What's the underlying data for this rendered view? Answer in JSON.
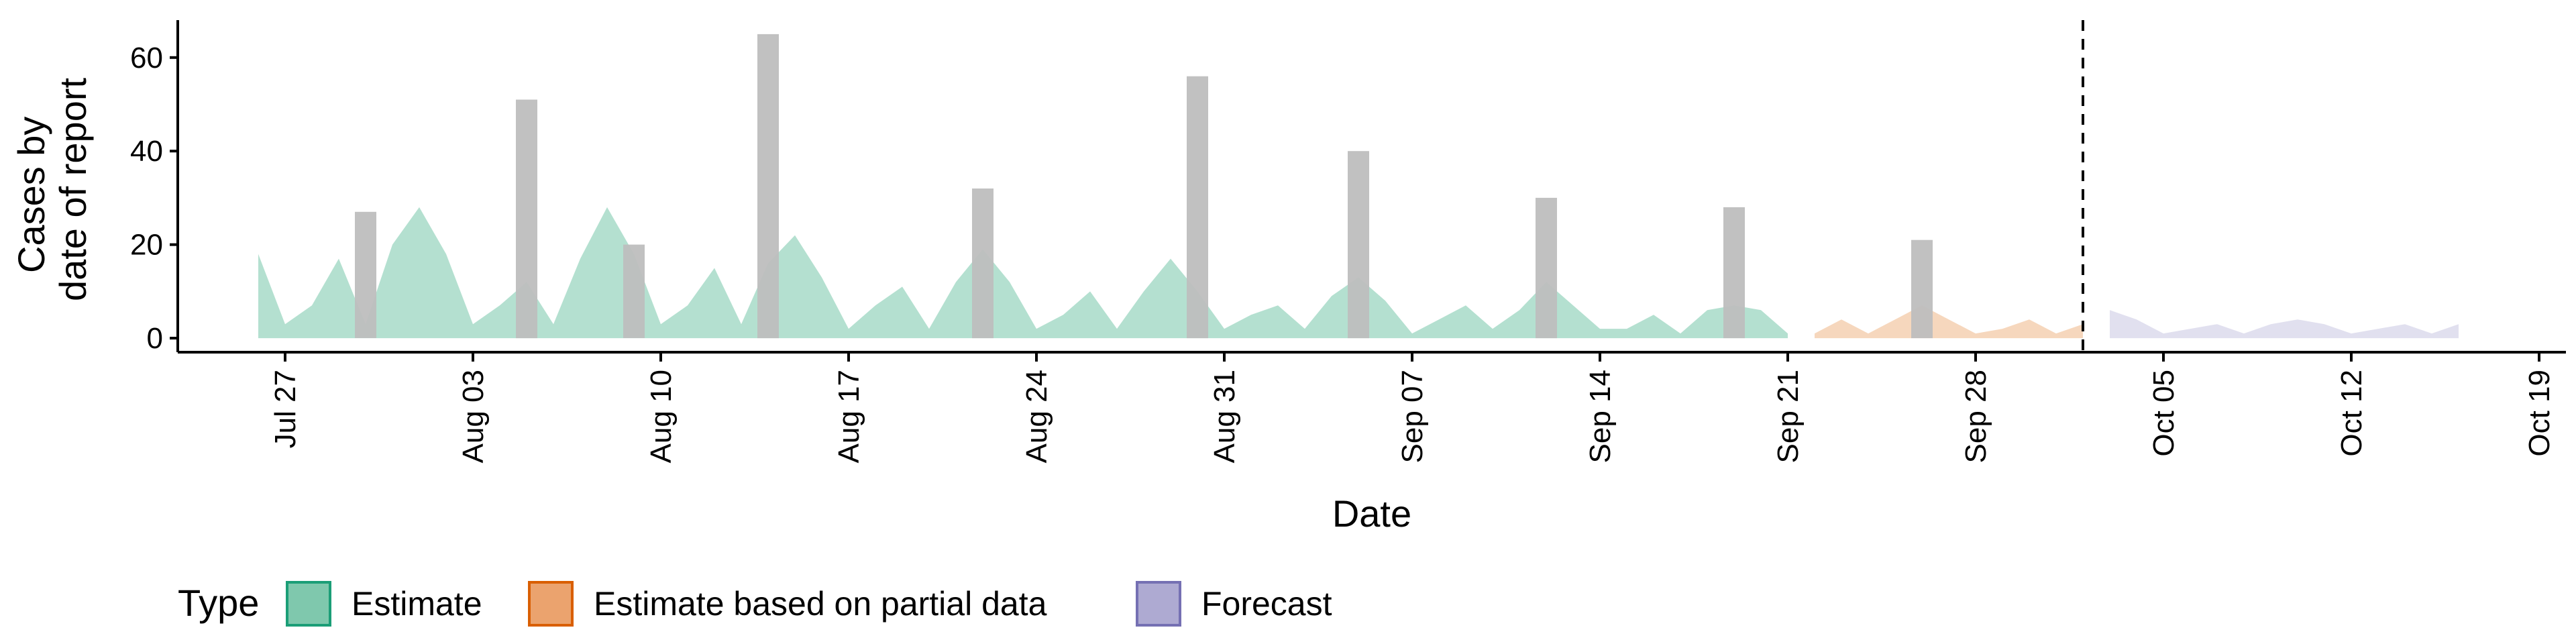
{
  "chart_data": {
    "type": "area",
    "title": "",
    "xlabel": "Date",
    "ylabel": [
      "Cases by",
      "date of report"
    ],
    "xlim": [
      "2020-07-23",
      "2020-10-20"
    ],
    "ylim": [
      -3,
      68
    ],
    "y_ticks": [
      0,
      20,
      40,
      60
    ],
    "x_ticks": [
      {
        "date": "2020-07-27",
        "label": "Jul 27"
      },
      {
        "date": "2020-08-03",
        "label": "Aug 03"
      },
      {
        "date": "2020-08-10",
        "label": "Aug 10"
      },
      {
        "date": "2020-08-17",
        "label": "Aug 17"
      },
      {
        "date": "2020-08-24",
        "label": "Aug 24"
      },
      {
        "date": "2020-08-31",
        "label": "Aug 31"
      },
      {
        "date": "2020-09-07",
        "label": "Sep 07"
      },
      {
        "date": "2020-09-14",
        "label": "Sep 14"
      },
      {
        "date": "2020-09-21",
        "label": "Sep 21"
      },
      {
        "date": "2020-09-28",
        "label": "Sep 28"
      },
      {
        "date": "2020-10-05",
        "label": "Oct 05"
      },
      {
        "date": "2020-10-12",
        "label": "Oct 12"
      },
      {
        "date": "2020-10-19",
        "label": "Oct 19"
      }
    ],
    "grid": false,
    "legend_position": "bottom",
    "legend_title": "Type",
    "legend": [
      {
        "label": "Estimate",
        "fill": "#7fc8ad",
        "stroke": "#1b9e77"
      },
      {
        "label": "Estimate based on partial data",
        "fill": "#eba36e",
        "stroke": "#d95f02"
      },
      {
        "label": "Forecast",
        "fill": "#aeaad2",
        "stroke": "#7570b3"
      }
    ],
    "forecast_line_date": "2020-10-02",
    "reported_cases": {
      "color": "#bebebe",
      "x": [
        "2020-07-30",
        "2020-08-05",
        "2020-08-09",
        "2020-08-14",
        "2020-08-22",
        "2020-08-30",
        "2020-09-05",
        "2020-09-12",
        "2020-09-19",
        "2020-09-26"
      ],
      "y": [
        27,
        51,
        20,
        65,
        32,
        56,
        40,
        30,
        28,
        21
      ]
    },
    "series": [
      {
        "name": "Estimate",
        "fill": "#a7dac8",
        "x": [
          "2020-07-26",
          "2020-07-27",
          "2020-07-28",
          "2020-07-29",
          "2020-07-30",
          "2020-07-31",
          "2020-08-01",
          "2020-08-02",
          "2020-08-03",
          "2020-08-04",
          "2020-08-05",
          "2020-08-06",
          "2020-08-07",
          "2020-08-08",
          "2020-08-09",
          "2020-08-10",
          "2020-08-11",
          "2020-08-12",
          "2020-08-13",
          "2020-08-14",
          "2020-08-15",
          "2020-08-16",
          "2020-08-17",
          "2020-08-18",
          "2020-08-19",
          "2020-08-20",
          "2020-08-21",
          "2020-08-22",
          "2020-08-23",
          "2020-08-24",
          "2020-08-25",
          "2020-08-26",
          "2020-08-27",
          "2020-08-28",
          "2020-08-29",
          "2020-08-30",
          "2020-08-31",
          "2020-09-01",
          "2020-09-02",
          "2020-09-03",
          "2020-09-04",
          "2020-09-05",
          "2020-09-06",
          "2020-09-07",
          "2020-09-08",
          "2020-09-09",
          "2020-09-10",
          "2020-09-11",
          "2020-09-12",
          "2020-09-13",
          "2020-09-14",
          "2020-09-15",
          "2020-09-16",
          "2020-09-17",
          "2020-09-18",
          "2020-09-19",
          "2020-09-20",
          "2020-09-21"
        ],
        "y": [
          18,
          3,
          7,
          17,
          3,
          20,
          28,
          18,
          3,
          7,
          12,
          3,
          17,
          28,
          18,
          3,
          7,
          15,
          3,
          16,
          22,
          13,
          2,
          7,
          11,
          2,
          12,
          19,
          12,
          2,
          5,
          10,
          2,
          10,
          17,
          10,
          2,
          5,
          7,
          2,
          9,
          13,
          8,
          1,
          4,
          7,
          2,
          6,
          12,
          7,
          2,
          2,
          5,
          1,
          6,
          7,
          6,
          1
        ]
      },
      {
        "name": "Estimate based on partial data",
        "fill": "#f5d0b2",
        "x": [
          "2020-09-22",
          "2020-09-23",
          "2020-09-24",
          "2020-09-25",
          "2020-09-26",
          "2020-09-27",
          "2020-09-28",
          "2020-09-29",
          "2020-09-30",
          "2020-10-01",
          "2020-10-02"
        ],
        "y": [
          1,
          4,
          1,
          4,
          7,
          4,
          1,
          2,
          4,
          1,
          3
        ]
      },
      {
        "name": "Forecast",
        "fill": "#dcdbec",
        "x": [
          "2020-10-03",
          "2020-10-04",
          "2020-10-05",
          "2020-10-06",
          "2020-10-07",
          "2020-10-08",
          "2020-10-09",
          "2020-10-10",
          "2020-10-11",
          "2020-10-12",
          "2020-10-13",
          "2020-10-14",
          "2020-10-15",
          "2020-10-16"
        ],
        "y": [
          6,
          4,
          1,
          2,
          3,
          1,
          3,
          4,
          3,
          1,
          2,
          3,
          1,
          3
        ]
      }
    ]
  }
}
